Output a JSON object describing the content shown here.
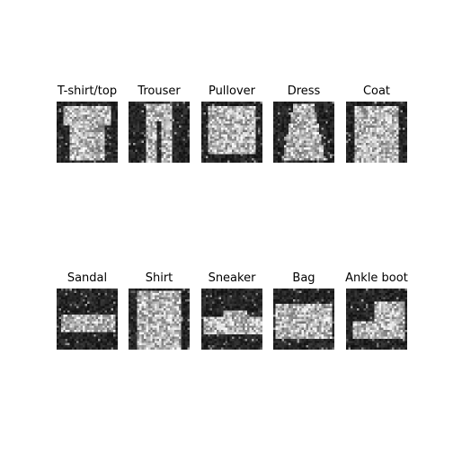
{
  "figure": {
    "background_color": "#ffffff",
    "rows": [
      {
        "items": [
          {
            "label": "T-shirt/top",
            "icon": "tshirt-image"
          },
          {
            "label": "Trouser",
            "icon": "trouser-image"
          },
          {
            "label": "Pullover",
            "icon": "pullover-image"
          },
          {
            "label": "Dress",
            "icon": "dress-image"
          },
          {
            "label": "Coat",
            "icon": "coat-image"
          }
        ]
      },
      {
        "items": [
          {
            "label": "Sandal",
            "icon": "sandal-image"
          },
          {
            "label": "Shirt",
            "icon": "shirt-image"
          },
          {
            "label": "Sneaker",
            "icon": "sneaker-image"
          },
          {
            "label": "Bag",
            "icon": "bag-image"
          },
          {
            "label": "Ankle boot",
            "icon": "ankle-boot-image"
          }
        ]
      }
    ]
  }
}
